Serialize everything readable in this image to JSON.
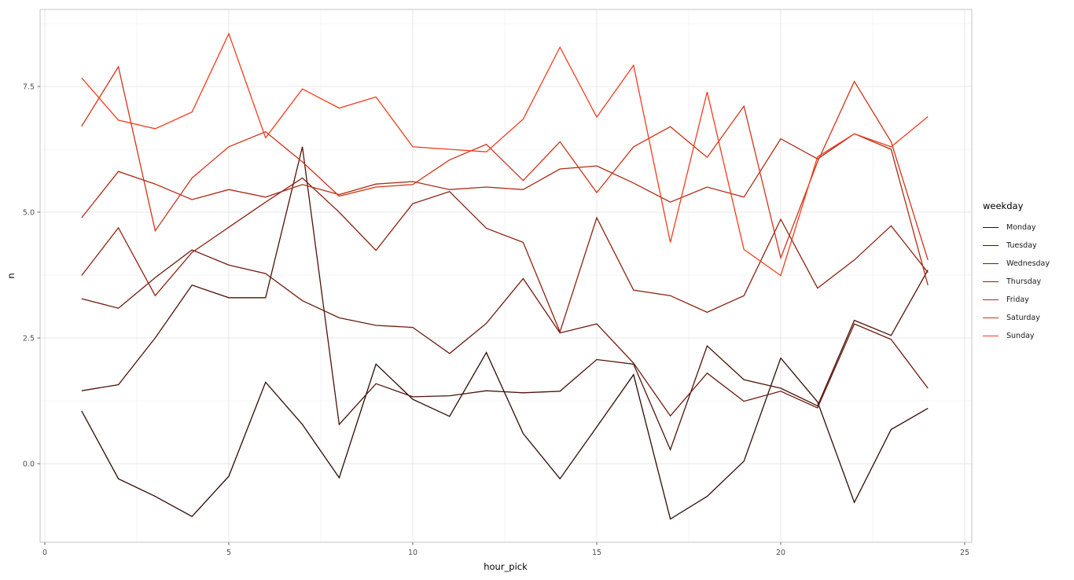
{
  "chart_data": {
    "type": "line",
    "title": "",
    "xlabel": "hour_pick",
    "ylabel": "n",
    "legend_title": "weekday",
    "legend_position": "right",
    "grid": true,
    "xlim": [
      -0.13,
      25.2
    ],
    "ylim": [
      -1.56,
      9.03
    ],
    "x_major_ticks": [
      0,
      5,
      10,
      15,
      20,
      25
    ],
    "x_major_tick_labels": [
      "0",
      "5",
      "10",
      "15",
      "20",
      "25"
    ],
    "x_minor_ticks": [
      2.5,
      7.5,
      12.5,
      17.5,
      22.5
    ],
    "y_major_ticks": [
      0.0,
      2.5,
      5.0,
      7.5
    ],
    "y_major_tick_labels": [
      "0.0",
      "2.5",
      "5.0",
      "7.5"
    ],
    "y_minor_ticks": [
      1.25,
      3.75,
      6.25,
      8.75
    ],
    "x": [
      1,
      2,
      3,
      4,
      5,
      6,
      7,
      8,
      9,
      10,
      11,
      12,
      13,
      14,
      15,
      16,
      17,
      18,
      19,
      20,
      21,
      22,
      23,
      24
    ],
    "series": [
      {
        "name": "Monday",
        "color": "#2d0b05",
        "values": [
          1.05,
          -0.3,
          -0.65,
          -1.05,
          -0.25,
          1.62,
          0.78,
          -0.28,
          1.98,
          1.28,
          0.94,
          2.21,
          0.6,
          -0.3,
          0.73,
          1.77,
          -1.1,
          -0.65,
          0.05,
          2.1,
          1.23,
          -0.77,
          0.68,
          1.1
        ]
      },
      {
        "name": "Tuesday",
        "color": "#4e130a",
        "values": [
          1.45,
          1.57,
          2.5,
          3.55,
          3.3,
          3.3,
          6.3,
          0.78,
          1.59,
          1.33,
          1.35,
          1.45,
          1.41,
          1.44,
          2.07,
          1.98,
          0.28,
          2.34,
          1.67,
          1.5,
          1.15,
          2.85,
          2.55,
          3.85
        ]
      },
      {
        "name": "Wednesday",
        "color": "#6e1b0e",
        "values": [
          3.28,
          3.09,
          3.7,
          4.25,
          3.95,
          3.78,
          3.24,
          2.9,
          2.75,
          2.71,
          2.19,
          2.79,
          3.68,
          2.6,
          2.78,
          2.0,
          0.95,
          1.8,
          1.24,
          1.44,
          1.11,
          2.78,
          2.47,
          1.5
        ]
      },
      {
        "name": "Thursday",
        "color": "#8f2312",
        "values": [
          3.74,
          4.69,
          3.34,
          4.2,
          4.7,
          5.2,
          5.68,
          5.0,
          4.24,
          5.17,
          5.41,
          4.68,
          4.4,
          2.62,
          4.89,
          3.45,
          3.34,
          3.01,
          3.34,
          4.86,
          3.49,
          4.05,
          4.73,
          3.8
        ]
      },
      {
        "name": "Friday",
        "color": "#b02b15",
        "values": [
          4.89,
          5.81,
          5.56,
          5.25,
          5.45,
          5.3,
          5.55,
          5.35,
          5.56,
          5.61,
          5.45,
          5.5,
          5.45,
          5.86,
          5.92,
          5.58,
          5.2,
          5.5,
          5.3,
          6.46,
          6.06,
          6.56,
          6.25,
          3.55
        ]
      },
      {
        "name": "Saturday",
        "color": "#d23419",
        "values": [
          6.71,
          7.89,
          4.63,
          5.68,
          6.3,
          6.6,
          6.0,
          5.32,
          5.5,
          5.55,
          6.04,
          6.35,
          5.63,
          6.4,
          5.39,
          6.3,
          6.7,
          6.09,
          7.11,
          4.09,
          6.0,
          7.6,
          6.4,
          4.05
        ]
      },
      {
        "name": "Sunday",
        "color": "#f33c1d",
        "values": [
          7.67,
          6.83,
          6.66,
          6.99,
          8.55,
          6.48,
          7.45,
          7.07,
          7.29,
          6.3,
          6.25,
          6.2,
          6.85,
          8.28,
          6.89,
          7.92,
          4.4,
          7.39,
          4.26,
          3.74,
          6.1,
          6.56,
          6.3,
          6.9
        ]
      }
    ],
    "style_colors": {
      "panel_background": "#ffffff",
      "panel_border": "#c4c4c4",
      "grid_major": "#e7e7e7",
      "grid_minor": "#f2f2f2",
      "tick_mark": "#666666",
      "tick_text": "#4d4d4d",
      "axis_title_text": "#000000"
    }
  }
}
